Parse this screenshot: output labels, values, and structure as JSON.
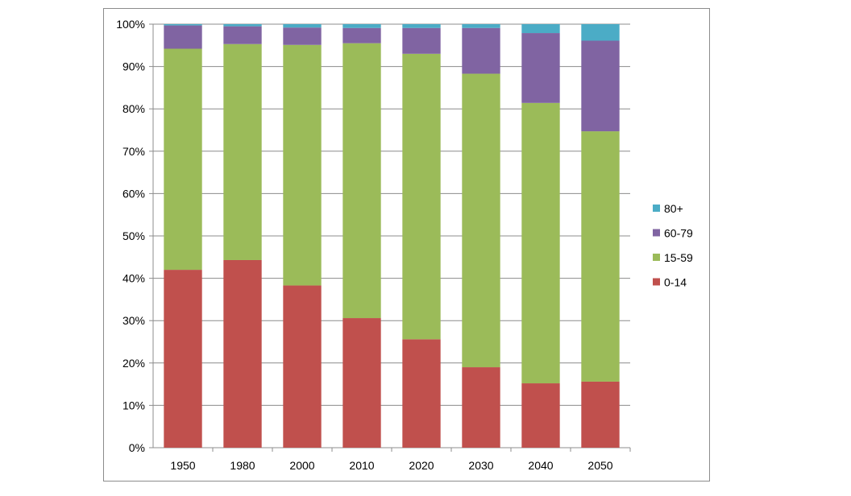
{
  "chart_data": {
    "type": "bar",
    "stacked": "percent",
    "categories": [
      "1950",
      "1980",
      "2000",
      "2010",
      "2020",
      "2030",
      "2040",
      "2050"
    ],
    "series": [
      {
        "name": "0-14",
        "color": "#c0504d",
        "values": [
          42.0,
          44.3,
          38.3,
          30.6,
          25.6,
          19.0,
          15.2,
          15.6
        ]
      },
      {
        "name": "15-59",
        "color": "#9bbb59",
        "values": [
          52.2,
          51.0,
          56.8,
          64.9,
          67.4,
          69.3,
          66.2,
          59.1
        ]
      },
      {
        "name": "60-79",
        "color": "#8064a2",
        "values": [
          5.5,
          4.2,
          4.1,
          3.6,
          6.1,
          10.8,
          16.5,
          21.4
        ]
      },
      {
        "name": "80+",
        "color": "#4bacc6",
        "values": [
          0.3,
          0.5,
          0.8,
          0.9,
          0.9,
          0.9,
          2.1,
          3.9
        ]
      }
    ],
    "yticks": [
      "0%",
      "10%",
      "20%",
      "30%",
      "40%",
      "50%",
      "60%",
      "70%",
      "80%",
      "90%",
      "100%"
    ],
    "ylim": [
      0,
      100
    ],
    "grid": true,
    "legend_position": "right",
    "legend_order": [
      "80+",
      "60-79",
      "15-59",
      "0-14"
    ]
  }
}
